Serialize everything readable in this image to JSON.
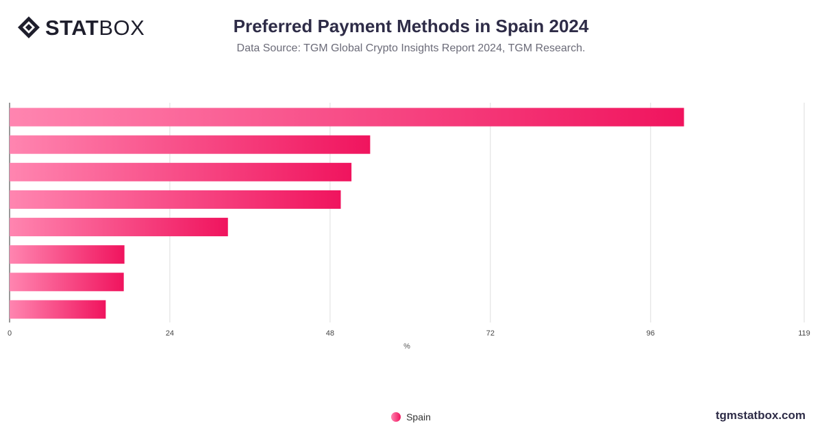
{
  "brand": {
    "bold": "STAT",
    "light": "BOX",
    "icon": "statbox-logo-icon"
  },
  "header": {
    "title": "Preferred Payment Methods in Spain 2024",
    "subtitle": "Data Source: TGM Global Crypto Insights Report 2024, TGM Research."
  },
  "footer": {
    "site": "tgmstatbox.com"
  },
  "legend": {
    "label": "Spain"
  },
  "colors": {
    "bar_start": "#ff85b0",
    "bar_end": "#f0145e",
    "grid": "#dddddd",
    "axis": "#333333"
  },
  "chart_data": {
    "type": "bar",
    "orientation": "horizontal",
    "categories": [
      "",
      "",
      "",
      "",
      "",
      "",
      "",
      ""
    ],
    "series": [
      {
        "name": "Spain",
        "values": [
          101,
          54,
          51.2,
          49.6,
          32.7,
          17.2,
          17.1,
          14.4
        ]
      }
    ],
    "xlabel": "%",
    "ylabel": "",
    "xlim": [
      0,
      119
    ],
    "xticks": [
      0,
      24,
      48,
      72,
      96,
      119
    ],
    "grid": true,
    "legend_position": "bottom-center"
  }
}
